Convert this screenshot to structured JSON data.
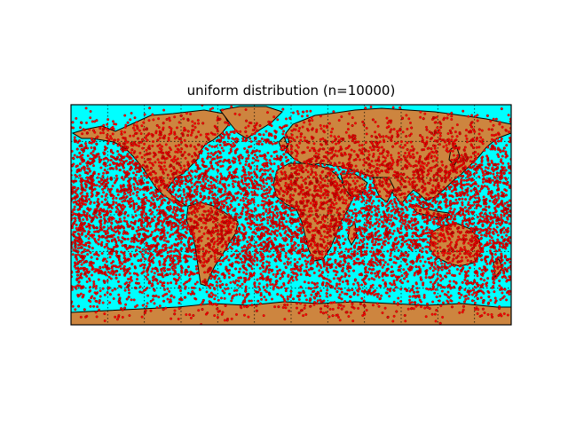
{
  "title": "uniform distribution (n=10000)",
  "map": {
    "projection": "cylindrical equidistant",
    "lon_range": [
      -180,
      180
    ],
    "lat_range": [
      -90,
      90
    ],
    "ocean_color": "#00ffff",
    "land_color": "#cd853f",
    "coastline_color": "#000000",
    "graticule": {
      "parallel_step_deg": 30,
      "meridian_step_deg": 30,
      "style": "dotted",
      "color": "#000000"
    }
  },
  "points": {
    "n": 10000,
    "distribution": "uniform",
    "color": "#ff0000",
    "edge_color": "#880000"
  }
}
